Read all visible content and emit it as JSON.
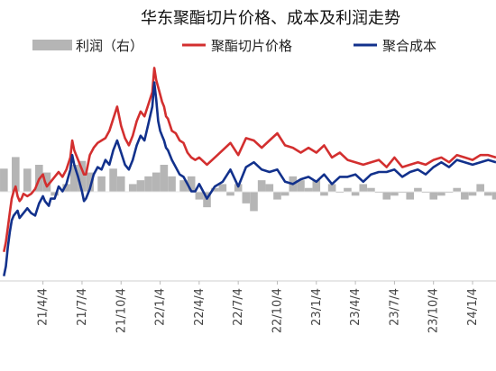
{
  "chart_data": {
    "type": "line",
    "title": "华东聚酯切片价格、成本及利润走势",
    "legend": {
      "placement": "top",
      "items": [
        {
          "label": "利润（右）",
          "color": "#b5b5b5",
          "kind": "area"
        },
        {
          "label": "聚酯切片价格",
          "color": "#d32f2f",
          "kind": "line"
        },
        {
          "label": "聚合成本",
          "color": "#12318c",
          "kind": "line"
        }
      ]
    },
    "x_tick_labels": [
      "21/4/4",
      "21/7/4",
      "21/10/4",
      "22/1/4",
      "22/4/4",
      "22/7/4",
      "22/10/4",
      "23/1/4",
      "23/4/4",
      "23/7/4",
      "23/10/4",
      "24/1/4",
      "24/4/4"
    ],
    "series": [
      {
        "name": "聚酯切片价格",
        "color": "#d32f2f",
        "x": [
          0,
          0.05,
          0.1,
          0.15,
          0.2,
          0.25,
          0.3,
          0.35,
          0.4,
          0.45,
          0.5,
          0.6,
          0.7,
          0.8,
          0.9,
          1.0,
          1.05,
          1.1,
          1.15,
          1.2,
          1.3,
          1.4,
          1.5,
          1.6,
          1.7,
          1.75,
          1.8,
          1.9,
          2.0,
          2.05,
          2.1,
          2.2,
          2.3,
          2.4,
          2.5,
          2.6,
          2.7,
          2.8,
          2.9,
          3.0,
          3.1,
          3.2,
          3.3,
          3.4,
          3.5,
          3.6,
          3.7,
          3.8,
          3.85,
          3.9,
          3.95,
          4.0,
          4.05,
          4.1,
          4.15,
          4.2,
          4.3,
          4.4,
          4.5,
          4.6,
          4.7,
          4.8,
          4.9,
          5.0,
          5.2,
          5.4,
          5.6,
          5.8,
          6.0,
          6.2,
          6.4,
          6.6,
          6.8,
          7.0,
          7.2,
          7.4,
          7.6,
          7.8,
          8.0,
          8.2,
          8.4,
          8.6,
          8.8,
          9.0,
          9.2,
          9.4,
          9.6,
          9.8,
          10.0,
          10.2,
          10.4,
          10.6,
          10.8,
          11.0,
          11.2,
          11.4,
          11.6,
          11.8,
          12.0,
          12.2,
          12.4,
          12.6
        ],
        "values": [
          5600,
          5800,
          6100,
          6400,
          6700,
          6850,
          6950,
          6750,
          6650,
          6700,
          6800,
          6750,
          6800,
          6900,
          7100,
          7200,
          7050,
          6950,
          7000,
          7050,
          7150,
          7250,
          7150,
          7300,
          7550,
          7900,
          7700,
          7500,
          7300,
          7200,
          7200,
          7600,
          7750,
          7850,
          7900,
          7950,
          8100,
          8350,
          8600,
          8200,
          7950,
          7800,
          8000,
          8300,
          8500,
          8400,
          8650,
          8900,
          9400,
          9150,
          9000,
          8850,
          8700,
          8600,
          8400,
          8350,
          8100,
          8050,
          7900,
          7850,
          7650,
          7550,
          7500,
          7550,
          7400,
          7550,
          7700,
          7850,
          7600,
          7950,
          7900,
          7750,
          7900,
          8050,
          7800,
          7750,
          7650,
          7750,
          7650,
          7800,
          7550,
          7650,
          7500,
          7450,
          7400,
          7450,
          7500,
          7350,
          7550,
          7350,
          7400,
          7450,
          7400,
          7500,
          7550,
          7450,
          7600,
          7550,
          7500,
          7600,
          7600,
          7550
        ]
      },
      {
        "name": "聚合成本",
        "color": "#12318c",
        "x": [
          0,
          0.05,
          0.1,
          0.15,
          0.2,
          0.25,
          0.3,
          0.35,
          0.4,
          0.45,
          0.5,
          0.6,
          0.7,
          0.8,
          0.9,
          1.0,
          1.05,
          1.1,
          1.15,
          1.2,
          1.3,
          1.4,
          1.5,
          1.6,
          1.7,
          1.75,
          1.8,
          1.9,
          2.0,
          2.05,
          2.1,
          2.2,
          2.3,
          2.4,
          2.5,
          2.6,
          2.7,
          2.8,
          2.9,
          3.0,
          3.1,
          3.2,
          3.3,
          3.4,
          3.5,
          3.6,
          3.7,
          3.8,
          3.85,
          3.9,
          3.95,
          4.0,
          4.05,
          4.1,
          4.15,
          4.2,
          4.3,
          4.4,
          4.5,
          4.6,
          4.7,
          4.8,
          4.9,
          5.0,
          5.2,
          5.4,
          5.6,
          5.8,
          6.0,
          6.2,
          6.4,
          6.6,
          6.8,
          7.0,
          7.2,
          7.4,
          7.6,
          7.8,
          8.0,
          8.2,
          8.4,
          8.6,
          8.8,
          9.0,
          9.2,
          9.4,
          9.6,
          9.8,
          10.0,
          10.2,
          10.4,
          10.6,
          10.8,
          11.0,
          11.2,
          11.4,
          11.6,
          11.8,
          12.0,
          12.2,
          12.4,
          12.6
        ],
        "values": [
          5100,
          5300,
          5700,
          6000,
          6250,
          6350,
          6400,
          6450,
          6300,
          6350,
          6400,
          6500,
          6400,
          6350,
          6600,
          6750,
          6650,
          6600,
          6550,
          6700,
          6700,
          6950,
          6850,
          7000,
          7300,
          7600,
          7400,
          7150,
          6850,
          6650,
          6700,
          6900,
          7200,
          7350,
          7300,
          7500,
          7400,
          7700,
          7900,
          7650,
          7400,
          7300,
          7500,
          7800,
          8000,
          7900,
          8250,
          8600,
          9100,
          8750,
          8300,
          8100,
          8000,
          7900,
          7750,
          7700,
          7500,
          7350,
          7200,
          7150,
          7000,
          6850,
          6850,
          7000,
          6700,
          6950,
          7050,
          7300,
          6950,
          7350,
          7450,
          7300,
          7250,
          7300,
          7050,
          7000,
          7100,
          7150,
          7050,
          7200,
          7000,
          7150,
          7150,
          7200,
          7050,
          7200,
          7250,
          7250,
          7300,
          7150,
          7250,
          7300,
          7200,
          7350,
          7450,
          7350,
          7500,
          7450,
          7400,
          7450,
          7500,
          7450
        ]
      },
      {
        "name": "利润（右）",
        "color": "#b5b5b5",
        "axis": "right",
        "x": [
          0,
          0.3,
          0.6,
          0.9,
          1.1,
          1.3,
          1.6,
          1.8,
          2.0,
          2.2,
          2.5,
          2.8,
          3.0,
          3.3,
          3.5,
          3.7,
          3.9,
          4.1,
          4.3,
          4.6,
          4.8,
          5.0,
          5.2,
          5.4,
          5.6,
          5.8,
          6.0,
          6.2,
          6.4,
          6.6,
          6.8,
          7.0,
          7.2,
          7.4,
          7.6,
          7.8,
          8.0,
          8.2,
          8.4,
          8.6,
          8.8,
          9.0,
          9.2,
          9.4,
          9.6,
          9.8,
          10.0,
          10.2,
          10.4,
          10.6,
          10.8,
          11.0,
          11.2,
          11.4,
          11.6,
          11.8,
          12.0,
          12.2,
          12.4,
          12.6
        ],
        "values": [
          300,
          450,
          300,
          350,
          250,
          -50,
          100,
          350,
          400,
          250,
          200,
          300,
          200,
          100,
          150,
          200,
          250,
          350,
          200,
          150,
          200,
          -100,
          -200,
          50,
          100,
          -50,
          100,
          -150,
          -250,
          150,
          100,
          -100,
          -50,
          200,
          150,
          50,
          150,
          -50,
          100,
          0,
          50,
          -50,
          100,
          50,
          0,
          -100,
          -50,
          0,
          -100,
          50,
          0,
          -100,
          -50,
          0,
          50,
          -100,
          -50,
          100,
          -50,
          -100
        ]
      }
    ]
  }
}
